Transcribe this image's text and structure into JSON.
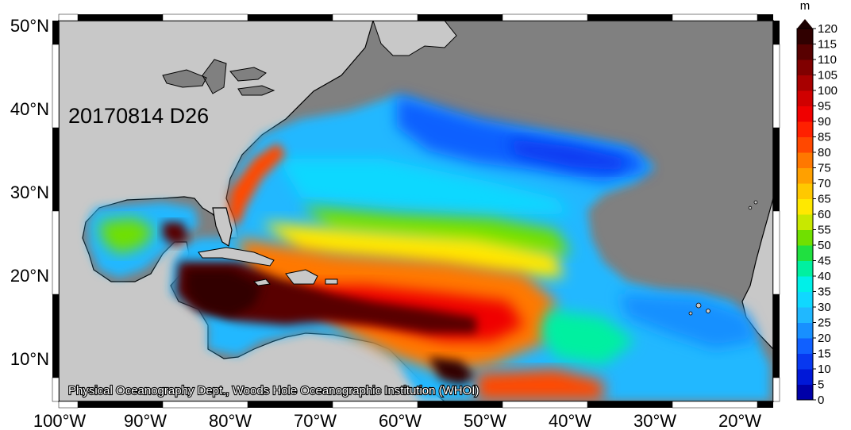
{
  "map": {
    "date_label": "20170814 D26",
    "credit": "Physical Oceanography Dept., Woods Hole Oceanographic Institution (WHOI)",
    "lat_labels": [
      "50°N",
      "40°N",
      "30°N",
      "20°N",
      "10°N"
    ],
    "lon_labels": [
      "100°W",
      "90°W",
      "80°W",
      "70°W",
      "60°W",
      "50°W",
      "40°W",
      "30°W",
      "20°W"
    ]
  },
  "colorbar": {
    "unit": "m",
    "ticks": [
      "0",
      "5",
      "10",
      "15",
      "20",
      "25",
      "30",
      "35",
      "40",
      "45",
      "50",
      "55",
      "60",
      "65",
      "70",
      "75",
      "80",
      "85",
      "90",
      "95",
      "100",
      "105",
      "110",
      "115",
      "120"
    ],
    "colors": [
      "#0000a8",
      "#0018d8",
      "#0838f0",
      "#1060ff",
      "#1890ff",
      "#20b8ff",
      "#10d8ff",
      "#00f0e8",
      "#00f0a0",
      "#20e040",
      "#70e000",
      "#c8e800",
      "#ffe800",
      "#ffc800",
      "#ffa000",
      "#ff7800",
      "#ff4800",
      "#ff2000",
      "#f00000",
      "#d00000",
      "#a80000",
      "#800000",
      "#580000",
      "#300000"
    ]
  },
  "colors": {
    "land": "#c8c8c8",
    "no_data": "#808080",
    "coast": "#000000"
  }
}
